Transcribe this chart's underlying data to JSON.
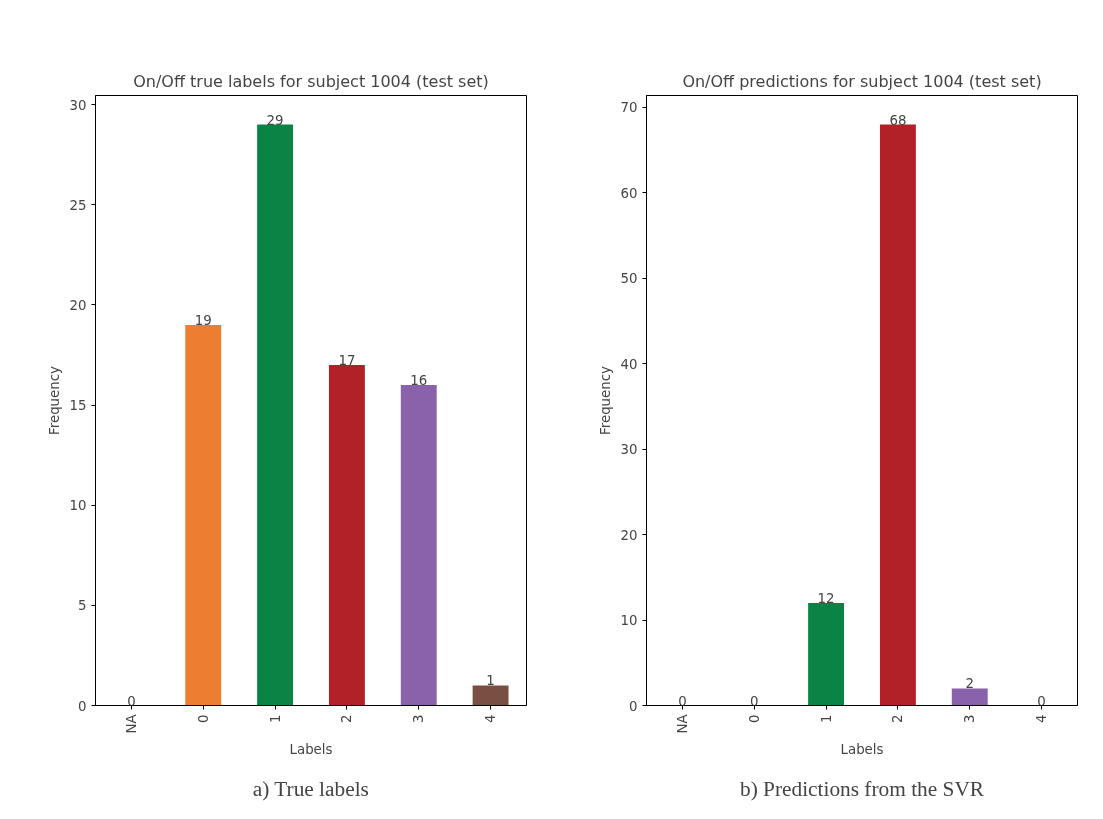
{
  "chart_data": [
    {
      "type": "bar",
      "title": "On/Off true labels for subject 1004 (test set)",
      "xlabel": "Labels",
      "ylabel": "Frequency",
      "categories": [
        "NA",
        "0",
        "1",
        "2",
        "3",
        "4"
      ],
      "values": [
        0,
        19,
        29,
        17,
        16,
        1
      ],
      "colors": [
        "#1f77b4",
        "#ed7d31",
        "#0a8344",
        "#b22028",
        "#8a62ab",
        "#7a4f43"
      ],
      "ylim": [
        0,
        30.45
      ],
      "yticks": [
        0,
        5,
        10,
        15,
        20,
        25,
        30
      ],
      "data_labels": true,
      "grid": false,
      "annotations": [
        "a) True labels"
      ]
    },
    {
      "type": "bar",
      "title": "On/Off predictions for subject 1004 (test set)",
      "xlabel": "Labels",
      "ylabel": "Frequency",
      "categories": [
        "NA",
        "0",
        "1",
        "2",
        "3",
        "4"
      ],
      "values": [
        0,
        0,
        12,
        68,
        2,
        0
      ],
      "colors": [
        "#1f77b4",
        "#ed7d31",
        "#0a8344",
        "#b22028",
        "#8a62ab",
        "#7a4f43"
      ],
      "ylim": [
        0,
        71.4
      ],
      "yticks": [
        0,
        10,
        20,
        30,
        40,
        50,
        60,
        70
      ],
      "data_labels": true,
      "grid": false,
      "annotations": [
        "b) Predictions from the SVR"
      ]
    }
  ]
}
